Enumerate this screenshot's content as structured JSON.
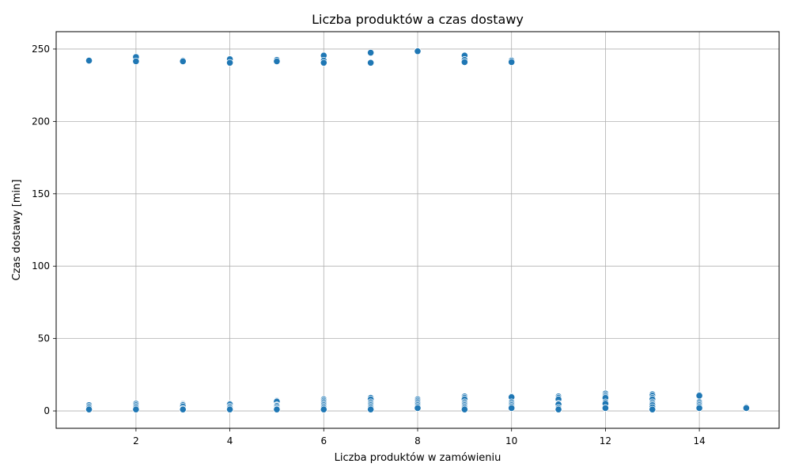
{
  "chart_data": {
    "type": "scatter",
    "title": "Liczba produktów a czas dostawy",
    "xlabel": "Liczba produktów w zamówieniu",
    "ylabel": "Czas dostawy [min]",
    "xlim": [
      0.3,
      15.7
    ],
    "ylim": [
      -12,
      262
    ],
    "xticks": [
      2,
      4,
      6,
      8,
      10,
      12,
      14
    ],
    "yticks": [
      0,
      50,
      100,
      150,
      200,
      250
    ],
    "grid": true,
    "marker_color": "#1f77b4",
    "marker_edge": "#ffffff",
    "grid_color": "#b0b0b0",
    "points": [
      [
        1,
        242
      ],
      [
        1,
        4
      ],
      [
        1,
        3
      ],
      [
        1,
        2
      ],
      [
        1,
        1
      ],
      [
        2,
        244.5
      ],
      [
        2,
        241.5
      ],
      [
        2,
        5
      ],
      [
        2,
        4
      ],
      [
        2,
        3
      ],
      [
        2,
        2
      ],
      [
        2,
        1
      ],
      [
        3,
        242
      ],
      [
        3,
        241.5
      ],
      [
        3,
        5
      ],
      [
        3,
        4.5
      ],
      [
        3,
        4
      ],
      [
        3,
        3
      ],
      [
        3,
        1.5
      ],
      [
        3,
        1
      ],
      [
        4,
        243
      ],
      [
        4,
        240.5
      ],
      [
        4,
        5
      ],
      [
        4,
        4.5
      ],
      [
        4,
        3
      ],
      [
        4,
        2
      ],
      [
        4,
        1
      ],
      [
        5,
        242.5
      ],
      [
        5,
        241.5
      ],
      [
        5,
        7
      ],
      [
        5,
        6.5
      ],
      [
        5,
        4
      ],
      [
        5,
        3.5
      ],
      [
        5,
        2.5
      ],
      [
        5,
        1.5
      ],
      [
        5,
        1
      ],
      [
        6,
        245.5
      ],
      [
        6,
        242
      ],
      [
        6,
        240.5
      ],
      [
        6,
        8
      ],
      [
        6,
        7
      ],
      [
        6,
        6
      ],
      [
        6,
        5
      ],
      [
        6,
        4
      ],
      [
        6,
        3
      ],
      [
        6,
        2
      ],
      [
        6,
        1
      ],
      [
        7,
        247.5
      ],
      [
        7,
        240.5
      ],
      [
        7,
        9
      ],
      [
        7,
        8
      ],
      [
        7,
        6
      ],
      [
        7,
        5
      ],
      [
        7,
        4
      ],
      [
        7,
        3
      ],
      [
        7,
        2
      ],
      [
        7,
        1
      ],
      [
        8,
        248.5
      ],
      [
        8,
        8
      ],
      [
        8,
        7
      ],
      [
        8,
        6
      ],
      [
        8,
        5
      ],
      [
        8,
        4
      ],
      [
        8,
        3
      ],
      [
        8,
        2
      ],
      [
        9,
        245.5
      ],
      [
        9,
        242.5
      ],
      [
        9,
        241
      ],
      [
        9,
        10
      ],
      [
        9,
        9
      ],
      [
        9,
        8
      ],
      [
        9,
        6
      ],
      [
        9,
        5
      ],
      [
        9,
        4
      ],
      [
        9,
        3
      ],
      [
        9,
        2
      ],
      [
        9,
        1
      ],
      [
        10,
        242
      ],
      [
        10,
        241
      ],
      [
        10,
        10
      ],
      [
        10,
        9.5
      ],
      [
        10,
        6
      ],
      [
        10,
        5
      ],
      [
        10,
        4
      ],
      [
        10,
        3
      ],
      [
        10,
        2
      ],
      [
        11,
        10
      ],
      [
        11,
        9
      ],
      [
        11,
        8
      ],
      [
        11,
        5
      ],
      [
        11,
        4.5
      ],
      [
        11,
        2
      ],
      [
        11,
        1
      ],
      [
        12,
        12
      ],
      [
        12,
        11
      ],
      [
        12,
        10
      ],
      [
        12,
        9
      ],
      [
        12,
        6
      ],
      [
        12,
        5
      ],
      [
        12,
        2
      ],
      [
        13,
        11.5
      ],
      [
        13,
        10.5
      ],
      [
        13,
        9
      ],
      [
        13,
        8
      ],
      [
        13,
        6
      ],
      [
        13,
        5
      ],
      [
        13,
        4
      ],
      [
        13,
        2.5
      ],
      [
        13,
        1
      ],
      [
        14,
        11
      ],
      [
        14,
        10.5
      ],
      [
        14,
        6
      ],
      [
        14,
        5
      ],
      [
        14,
        4
      ],
      [
        14,
        3
      ],
      [
        14,
        2
      ],
      [
        15,
        2.5
      ],
      [
        15,
        2
      ]
    ]
  }
}
